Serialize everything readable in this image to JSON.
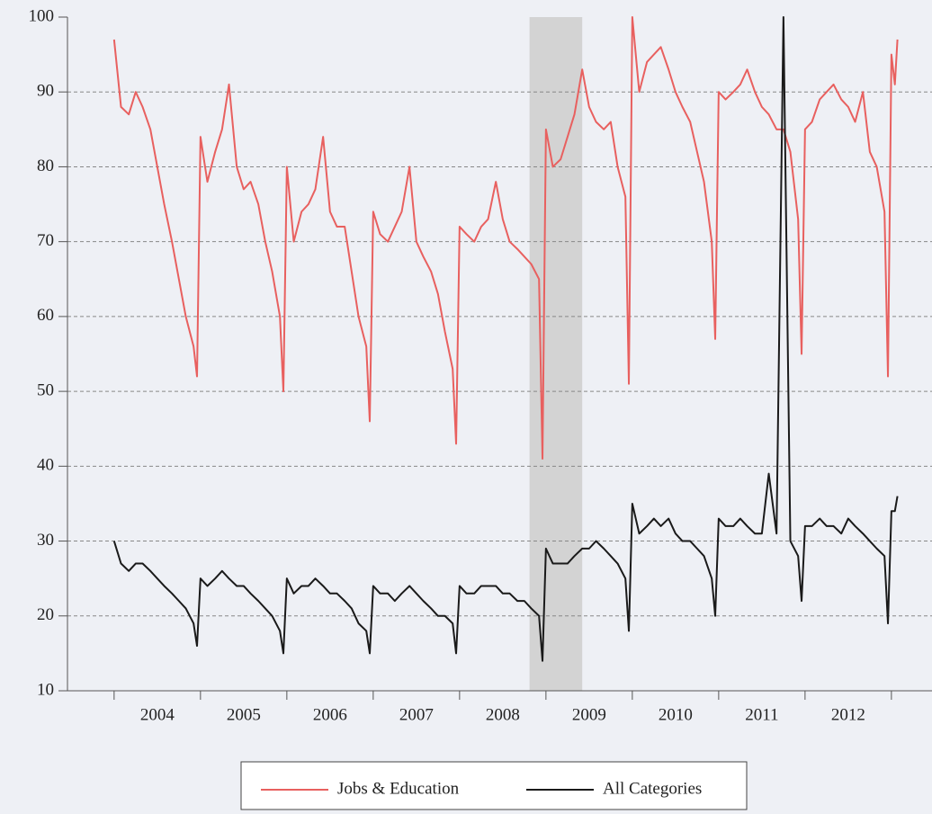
{
  "chart_data": {
    "type": "line",
    "x": [
      2004,
      2004.08,
      2004.17,
      2004.25,
      2004.33,
      2004.42,
      2004.5,
      2004.58,
      2004.67,
      2004.75,
      2004.83,
      2004.92,
      2004.96,
      2005,
      2005.08,
      2005.17,
      2005.25,
      2005.33,
      2005.42,
      2005.5,
      2005.58,
      2005.67,
      2005.75,
      2005.83,
      2005.92,
      2005.96,
      2006,
      2006.08,
      2006.17,
      2006.25,
      2006.33,
      2006.42,
      2006.5,
      2006.58,
      2006.67,
      2006.75,
      2006.83,
      2006.92,
      2006.96,
      2007,
      2007.08,
      2007.17,
      2007.25,
      2007.33,
      2007.42,
      2007.5,
      2007.58,
      2007.67,
      2007.75,
      2007.83,
      2007.92,
      2007.96,
      2008,
      2008.08,
      2008.17,
      2008.25,
      2008.33,
      2008.42,
      2008.5,
      2008.58,
      2008.67,
      2008.75,
      2008.83,
      2008.92,
      2008.96,
      2009,
      2009.08,
      2009.17,
      2009.25,
      2009.33,
      2009.42,
      2009.5,
      2009.58,
      2009.67,
      2009.75,
      2009.83,
      2009.92,
      2009.96,
      2010,
      2010.08,
      2010.17,
      2010.25,
      2010.33,
      2010.42,
      2010.5,
      2010.58,
      2010.67,
      2010.75,
      2010.83,
      2010.92,
      2010.96,
      2011,
      2011.08,
      2011.17,
      2011.25,
      2011.33,
      2011.42,
      2011.5,
      2011.58,
      2011.67,
      2011.75,
      2011.83,
      2011.92,
      2011.96,
      2012,
      2012.08,
      2012.17,
      2012.25,
      2012.33,
      2012.42,
      2012.5,
      2012.58,
      2012.67,
      2012.75,
      2012.83,
      2012.92,
      2012.96,
      2013,
      2013.04,
      2013.07
    ],
    "series": [
      {
        "name": "Jobs & Education",
        "color": "#e8605f",
        "values": [
          97,
          88,
          87,
          90,
          88,
          85,
          80,
          75,
          70,
          65,
          60,
          56,
          52,
          84,
          78,
          82,
          85,
          91,
          80,
          77,
          78,
          75,
          70,
          66,
          60,
          50,
          80,
          70,
          74,
          75,
          77,
          84,
          74,
          72,
          72,
          66,
          60,
          56,
          46,
          74,
          71,
          70,
          72,
          74,
          80,
          70,
          68,
          66,
          63,
          58,
          53,
          43,
          72,
          71,
          70,
          72,
          73,
          78,
          73,
          70,
          69,
          68,
          67,
          65,
          41,
          85,
          80,
          81,
          84,
          87,
          93,
          88,
          86,
          85,
          86,
          80,
          76,
          51,
          100,
          90,
          94,
          95,
          96,
          93,
          90,
          88,
          86,
          82,
          78,
          70,
          57,
          90,
          89,
          90,
          91,
          93,
          90,
          88,
          87,
          85,
          85,
          82,
          73,
          55,
          85,
          86,
          89,
          90,
          91,
          89,
          88,
          86,
          90,
          82,
          80,
          74,
          52,
          95,
          91,
          97
        ]
      },
      {
        "name": "All Categories",
        "color": "#1a1a1a",
        "values": [
          30,
          27,
          26,
          27,
          27,
          26,
          25,
          24,
          23,
          22,
          21,
          19,
          16,
          25,
          24,
          25,
          26,
          25,
          24,
          24,
          23,
          22,
          21,
          20,
          18,
          15,
          25,
          23,
          24,
          24,
          25,
          24,
          23,
          23,
          22,
          21,
          19,
          18,
          15,
          24,
          23,
          23,
          22,
          23,
          24,
          23,
          22,
          21,
          20,
          20,
          19,
          15,
          24,
          23,
          23,
          24,
          24,
          24,
          23,
          23,
          22,
          22,
          21,
          20,
          14,
          29,
          27,
          27,
          27,
          28,
          29,
          29,
          30,
          29,
          28,
          27,
          25,
          18,
          35,
          31,
          32,
          33,
          32,
          33,
          31,
          30,
          30,
          29,
          28,
          25,
          20,
          33,
          32,
          32,
          33,
          32,
          31,
          31,
          39,
          31,
          100,
          30,
          28,
          22,
          32,
          32,
          33,
          32,
          32,
          31,
          33,
          32,
          31,
          30,
          29,
          28,
          19,
          34,
          34,
          36
        ]
      }
    ],
    "xlim": [
      2003.46,
      2013.47
    ],
    "xticks": [
      {
        "value": 2004.5,
        "label": "2004"
      },
      {
        "value": 2005.5,
        "label": "2005"
      },
      {
        "value": 2006.5,
        "label": "2006"
      },
      {
        "value": 2007.5,
        "label": "2007"
      },
      {
        "value": 2008.5,
        "label": "2008"
      },
      {
        "value": 2009.5,
        "label": "2009"
      },
      {
        "value": 2010.5,
        "label": "2010"
      },
      {
        "value": 2011.5,
        "label": "2011"
      },
      {
        "value": 2012.5,
        "label": "2012"
      }
    ],
    "ylim": [
      10,
      100
    ],
    "yticks": [
      10,
      20,
      30,
      40,
      50,
      60,
      70,
      80,
      90,
      100
    ],
    "grid": true,
    "shade": {
      "x": [
        2008.81,
        2009.42
      ],
      "color": "#d3d3d3"
    },
    "legend": "bottom"
  }
}
